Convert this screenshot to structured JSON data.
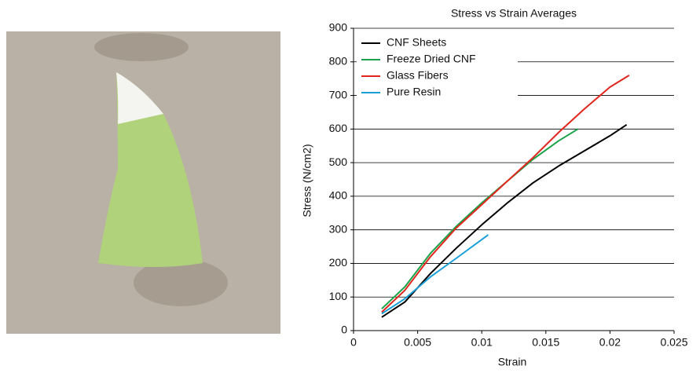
{
  "chart_data": {
    "type": "line",
    "title": "Stress vs Strain Averages",
    "x_label": "Strain",
    "y_label": "Stress (N/cm2)",
    "xlim": [
      0,
      0.025
    ],
    "xticks": [
      0,
      0.005,
      0.01,
      0.015,
      0.02,
      0.025
    ],
    "ylim": [
      0,
      900
    ],
    "yticks": [
      0,
      100,
      200,
      300,
      400,
      500,
      600,
      700,
      800,
      900
    ],
    "grid": true,
    "legend": "upper-left",
    "series": [
      {
        "name": "CNF Sheets",
        "color": "#000000",
        "x": [
          0.0022,
          0.004,
          0.006,
          0.008,
          0.01,
          0.012,
          0.014,
          0.016,
          0.018,
          0.02,
          0.0213
        ],
        "values": [
          40,
          85,
          170,
          245,
          315,
          380,
          440,
          490,
          535,
          580,
          613
        ]
      },
      {
        "name": "Freeze Dried CNF",
        "color": "#1aa34a",
        "x": [
          0.0022,
          0.004,
          0.006,
          0.008,
          0.01,
          0.012,
          0.014,
          0.016,
          0.0175
        ],
        "values": [
          65,
          130,
          230,
          310,
          380,
          445,
          510,
          565,
          600
        ]
      },
      {
        "name": "Glass Fibers",
        "color": "#e0261d",
        "x": [
          0.0022,
          0.004,
          0.006,
          0.008,
          0.01,
          0.012,
          0.014,
          0.016,
          0.018,
          0.02,
          0.0215
        ],
        "values": [
          55,
          120,
          220,
          305,
          375,
          445,
          515,
          590,
          660,
          725,
          760
        ]
      },
      {
        "name": "Pure Resin",
        "color": "#1a9fd8",
        "x": [
          0.0022,
          0.004,
          0.006,
          0.008,
          0.0105
        ],
        "values": [
          50,
          95,
          160,
          215,
          285
        ]
      }
    ]
  }
}
